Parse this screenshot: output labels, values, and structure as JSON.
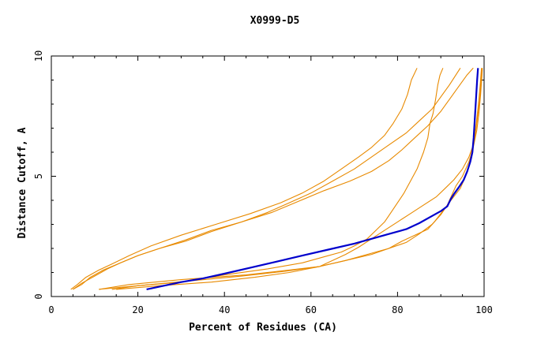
{
  "chart_data": {
    "type": "line",
    "title": "X0999-D5",
    "xlabel": "Percent of Residues (CA)",
    "ylabel": "Distance Cutoff, A",
    "xlim": [
      0,
      100
    ],
    "ylim": [
      0,
      10
    ],
    "xticks": [
      "0",
      "20",
      "40",
      "60",
      "80",
      "100"
    ],
    "yticks": [
      "0",
      "5",
      "10"
    ],
    "grid": false,
    "colors": {
      "highlight": "#0000cc",
      "other": "#e88a00"
    },
    "series": [
      {
        "highlight": false,
        "points": [
          [
            4.5,
            0.3
          ],
          [
            6,
            0.5
          ],
          [
            8,
            0.8
          ],
          [
            11,
            1.1
          ],
          [
            14,
            1.35
          ],
          [
            18,
            1.7
          ],
          [
            23,
            2.1
          ],
          [
            30,
            2.55
          ],
          [
            38,
            3.0
          ],
          [
            46,
            3.45
          ],
          [
            53,
            3.9
          ],
          [
            58,
            4.3
          ],
          [
            63,
            4.8
          ],
          [
            67,
            5.3
          ],
          [
            71,
            5.8
          ],
          [
            74,
            6.2
          ],
          [
            77,
            6.7
          ],
          [
            79,
            7.2
          ],
          [
            81,
            7.8
          ],
          [
            82.3,
            8.4
          ],
          [
            83.2,
            9.0
          ],
          [
            84.5,
            9.5
          ]
        ]
      },
      {
        "highlight": false,
        "points": [
          [
            5,
            0.3
          ],
          [
            7,
            0.5
          ],
          [
            9,
            0.8
          ],
          [
            12,
            1.1
          ],
          [
            16,
            1.4
          ],
          [
            20,
            1.7
          ],
          [
            25,
            2.0
          ],
          [
            31,
            2.35
          ],
          [
            37,
            2.75
          ],
          [
            44,
            3.1
          ],
          [
            50,
            3.5
          ],
          [
            55,
            3.9
          ],
          [
            60,
            4.3
          ],
          [
            65,
            4.8
          ],
          [
            70,
            5.3
          ],
          [
            74,
            5.8
          ],
          [
            78,
            6.3
          ],
          [
            82,
            6.8
          ],
          [
            85,
            7.3
          ],
          [
            88,
            7.8
          ],
          [
            90,
            8.3
          ],
          [
            92,
            8.8
          ],
          [
            94.5,
            9.5
          ]
        ]
      },
      {
        "highlight": false,
        "points": [
          [
            5,
            0.3
          ],
          [
            7,
            0.55
          ],
          [
            10,
            0.85
          ],
          [
            13,
            1.15
          ],
          [
            16,
            1.4
          ],
          [
            20,
            1.7
          ],
          [
            25,
            2.0
          ],
          [
            31,
            2.3
          ],
          [
            37,
            2.7
          ],
          [
            44,
            3.1
          ],
          [
            51,
            3.5
          ],
          [
            57,
            3.95
          ],
          [
            63,
            4.4
          ],
          [
            69,
            4.8
          ],
          [
            74,
            5.2
          ],
          [
            78,
            5.65
          ],
          [
            81,
            6.1
          ],
          [
            84,
            6.6
          ],
          [
            87,
            7.1
          ],
          [
            90,
            7.7
          ],
          [
            92,
            8.2
          ],
          [
            94,
            8.7
          ],
          [
            96,
            9.2
          ],
          [
            97.5,
            9.5
          ]
        ]
      },
      {
        "highlight": false,
        "points": [
          [
            14,
            0.3
          ],
          [
            20,
            0.45
          ],
          [
            30,
            0.6
          ],
          [
            40,
            0.9
          ],
          [
            50,
            1.15
          ],
          [
            58,
            1.4
          ],
          [
            63,
            1.65
          ],
          [
            67,
            1.85
          ],
          [
            70,
            2.1
          ],
          [
            73,
            2.4
          ],
          [
            75,
            2.75
          ],
          [
            77,
            3.1
          ],
          [
            78.5,
            3.5
          ],
          [
            80,
            3.9
          ],
          [
            81.5,
            4.3
          ],
          [
            83,
            4.8
          ],
          [
            84.5,
            5.3
          ],
          [
            86,
            6.0
          ],
          [
            87,
            6.6
          ],
          [
            87.5,
            7.2
          ],
          [
            88.2,
            7.6
          ],
          [
            88.8,
            8.2
          ],
          [
            89.3,
            8.8
          ],
          [
            89.8,
            9.2
          ],
          [
            90.5,
            9.5
          ]
        ]
      },
      {
        "highlight": false,
        "points": [
          [
            11,
            0.3
          ],
          [
            18,
            0.5
          ],
          [
            30,
            0.7
          ],
          [
            45,
            0.9
          ],
          [
            55,
            1.1
          ],
          [
            62,
            1.25
          ],
          [
            65,
            1.5
          ],
          [
            68,
            1.75
          ],
          [
            71,
            2.05
          ],
          [
            74,
            2.4
          ],
          [
            77,
            2.75
          ],
          [
            80,
            3.1
          ],
          [
            83,
            3.45
          ],
          [
            86,
            3.8
          ],
          [
            89,
            4.15
          ],
          [
            91,
            4.5
          ],
          [
            93,
            4.85
          ],
          [
            95,
            5.3
          ],
          [
            96.5,
            5.8
          ],
          [
            97.5,
            6.3
          ],
          [
            98,
            6.8
          ],
          [
            98.5,
            7.5
          ],
          [
            99,
            8.2
          ],
          [
            99.3,
            8.9
          ],
          [
            99.5,
            9.5
          ]
        ]
      },
      {
        "highlight": false,
        "points": [
          [
            15,
            0.3
          ],
          [
            25,
            0.45
          ],
          [
            37,
            0.6
          ],
          [
            47,
            0.8
          ],
          [
            55,
            1.0
          ],
          [
            62,
            1.25
          ],
          [
            68,
            1.5
          ],
          [
            74,
            1.75
          ],
          [
            78,
            2.0
          ],
          [
            81,
            2.3
          ],
          [
            84,
            2.55
          ],
          [
            87,
            2.8
          ],
          [
            88.5,
            3.1
          ],
          [
            90,
            3.45
          ],
          [
            91.5,
            3.8
          ],
          [
            93,
            4.15
          ],
          [
            94.5,
            4.5
          ],
          [
            95.5,
            4.9
          ],
          [
            96.5,
            5.4
          ],
          [
            97,
            5.9
          ],
          [
            97.7,
            6.5
          ],
          [
            98.2,
            7.2
          ],
          [
            98.7,
            8.0
          ],
          [
            99.1,
            8.8
          ],
          [
            99.4,
            9.5
          ]
        ]
      },
      {
        "highlight": false,
        "points": [
          [
            11,
            0.3
          ],
          [
            20,
            0.45
          ],
          [
            32,
            0.65
          ],
          [
            44,
            0.85
          ],
          [
            54,
            1.05
          ],
          [
            62,
            1.25
          ],
          [
            68,
            1.5
          ],
          [
            73,
            1.75
          ],
          [
            78,
            2.0
          ],
          [
            82,
            2.25
          ],
          [
            85,
            2.6
          ],
          [
            88,
            3.0
          ],
          [
            90,
            3.4
          ],
          [
            91.5,
            3.8
          ],
          [
            92.5,
            4.2
          ],
          [
            93.5,
            4.6
          ],
          [
            95,
            5.0
          ],
          [
            96.5,
            5.6
          ],
          [
            97.5,
            6.2
          ],
          [
            98.3,
            6.9
          ],
          [
            98.8,
            7.6
          ],
          [
            99.2,
            8.4
          ],
          [
            99.5,
            9.2
          ],
          [
            99.6,
            9.5
          ]
        ]
      },
      {
        "highlight": true,
        "points": [
          [
            22,
            0.3
          ],
          [
            26,
            0.45
          ],
          [
            30,
            0.6
          ],
          [
            35,
            0.75
          ],
          [
            40,
            0.95
          ],
          [
            46,
            1.2
          ],
          [
            52,
            1.45
          ],
          [
            58,
            1.7
          ],
          [
            64,
            1.95
          ],
          [
            70,
            2.2
          ],
          [
            74,
            2.4
          ],
          [
            78,
            2.6
          ],
          [
            82,
            2.8
          ],
          [
            85,
            3.05
          ],
          [
            88,
            3.35
          ],
          [
            90,
            3.55
          ],
          [
            91.5,
            3.75
          ],
          [
            92.3,
            4.05
          ],
          [
            93,
            4.25
          ],
          [
            94.2,
            4.55
          ],
          [
            95.3,
            4.85
          ],
          [
            96.1,
            5.2
          ],
          [
            96.8,
            5.6
          ],
          [
            97.3,
            6.0
          ],
          [
            97.6,
            6.6
          ],
          [
            97.8,
            7.2
          ],
          [
            98,
            7.8
          ],
          [
            98.2,
            8.4
          ],
          [
            98.4,
            9.0
          ],
          [
            98.6,
            9.5
          ]
        ]
      }
    ]
  }
}
